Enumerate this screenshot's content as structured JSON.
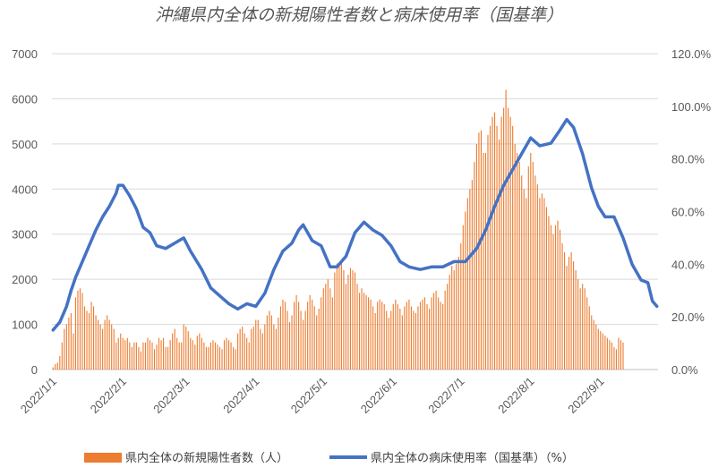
{
  "chart_data": {
    "type": "bar+line",
    "title": "沖縄県内全体の新規陽性者数と病床使用率（国基準）",
    "xlabel": "",
    "ylabel": "",
    "x_range": [
      "2022-01-01",
      "2022-09-26"
    ],
    "x_ticks": [
      "2022/1/1",
      "2022/2/1",
      "2022/3/1",
      "2022/4/1",
      "2022/5/1",
      "2022/6/1",
      "2022/7/1",
      "2022/8/1",
      "2022/9/1"
    ],
    "y_left": {
      "range": [
        0,
        7000
      ],
      "ticks": [
        "0",
        "1000",
        "2000",
        "3000",
        "4000",
        "5000",
        "6000",
        "7000"
      ]
    },
    "y_right": {
      "range": [
        0,
        1.2
      ],
      "ticks": [
        "0.0%",
        "20.0%",
        "40.0%",
        "60.0%",
        "80.0%",
        "100.0%",
        "120.0%"
      ]
    },
    "grid": true,
    "legend_position": "bottom",
    "series": [
      {
        "name": "県内全体の新規陽性者数（人）",
        "type": "bar",
        "axis": "left",
        "color": "#ED7D31",
        "x_start": "2022-01-01",
        "interval_days": 1,
        "values": [
          50,
          120,
          150,
          300,
          600,
          900,
          1000,
          1150,
          1250,
          800,
          1600,
          1750,
          1800,
          1700,
          1400,
          1300,
          1250,
          1500,
          1400,
          1200,
          1100,
          1000,
          900,
          1100,
          1200,
          1100,
          1000,
          900,
          600,
          700,
          800,
          700,
          650,
          700,
          600,
          500,
          600,
          600,
          500,
          400,
          600,
          600,
          700,
          650,
          600,
          450,
          550,
          700,
          650,
          700,
          500,
          500,
          650,
          800,
          900,
          700,
          600,
          600,
          1000,
          950,
          850,
          700,
          650,
          550,
          750,
          800,
          700,
          600,
          500,
          500,
          600,
          650,
          600,
          550,
          500,
          450,
          650,
          700,
          650,
          600,
          500,
          450,
          800,
          900,
          950,
          800,
          700,
          600,
          900,
          950,
          1100,
          1100,
          900,
          800,
          1000,
          1200,
          1300,
          1200,
          1000,
          900,
          1150,
          1400,
          1550,
          1500,
          1300,
          1050,
          1200,
          1500,
          1650,
          1500,
          1300,
          1100,
          1300,
          1500,
          1650,
          1550,
          1400,
          1200,
          1350,
          1600,
          1800,
          1900,
          2000,
          1800,
          1600,
          2150,
          2350,
          2300,
          2400,
          2200,
          1900,
          2100,
          2250,
          2200,
          2150,
          1900,
          1700,
          1800,
          1700,
          1650,
          1600,
          1550,
          1400,
          1250,
          1500,
          1550,
          1500,
          1450,
          1300,
          1150,
          1300,
          1450,
          1550,
          1450,
          1350,
          1200,
          1400,
          1500,
          1550,
          1400,
          1300,
          1250,
          1400,
          1500,
          1550,
          1600,
          1450,
          1350,
          1600,
          1700,
          1750,
          1600,
          1500,
          1450,
          1750,
          1900,
          2100,
          2300,
          2200,
          2350,
          2500,
          2800,
          3200,
          3500,
          3800,
          4000,
          4200,
          4600,
          5000,
          5250,
          5300,
          4800,
          4800,
          5200,
          5400,
          5600,
          5700,
          5400,
          5100,
          5600,
          5800,
          6200,
          5800,
          5600,
          5400,
          5000,
          4800,
          4600,
          4300,
          4000,
          3800,
          4500,
          4800,
          4600,
          4300,
          4100,
          3800,
          3900,
          3800,
          3600,
          3400,
          3200,
          3000,
          3200,
          3300,
          3100,
          2800,
          2600,
          2300,
          2500,
          2600,
          2400,
          2200,
          2000,
          1800,
          1900,
          1800,
          1600,
          1400,
          1200,
          1100,
          1000,
          900,
          850,
          800,
          750,
          700,
          650,
          600,
          500,
          450,
          700,
          650,
          600
        ]
      },
      {
        "name": "県内全体の病床使用率（国基準）（%）",
        "type": "line",
        "axis": "right",
        "color": "#4472C4",
        "points": [
          [
            "2022-01-01",
            0.15
          ],
          [
            "2022-01-04",
            0.18
          ],
          [
            "2022-01-07",
            0.24
          ],
          [
            "2022-01-09",
            0.3
          ],
          [
            "2022-01-11",
            0.35
          ],
          [
            "2022-01-14",
            0.41
          ],
          [
            "2022-01-17",
            0.47
          ],
          [
            "2022-01-20",
            0.53
          ],
          [
            "2022-01-23",
            0.58
          ],
          [
            "2022-01-26",
            0.62
          ],
          [
            "2022-01-29",
            0.67
          ],
          [
            "2022-01-30",
            0.7
          ],
          [
            "2022-02-01",
            0.7
          ],
          [
            "2022-02-04",
            0.66
          ],
          [
            "2022-02-07",
            0.61
          ],
          [
            "2022-02-10",
            0.54
          ],
          [
            "2022-02-13",
            0.52
          ],
          [
            "2022-02-16",
            0.47
          ],
          [
            "2022-02-20",
            0.46
          ],
          [
            "2022-02-24",
            0.48
          ],
          [
            "2022-02-28",
            0.5
          ],
          [
            "2022-03-03",
            0.45
          ],
          [
            "2022-03-08",
            0.38
          ],
          [
            "2022-03-12",
            0.31
          ],
          [
            "2022-03-16",
            0.28
          ],
          [
            "2022-03-20",
            0.25
          ],
          [
            "2022-03-24",
            0.23
          ],
          [
            "2022-03-28",
            0.25
          ],
          [
            "2022-04-01",
            0.24
          ],
          [
            "2022-04-05",
            0.29
          ],
          [
            "2022-04-09",
            0.38
          ],
          [
            "2022-04-13",
            0.45
          ],
          [
            "2022-04-17",
            0.48
          ],
          [
            "2022-04-20",
            0.53
          ],
          [
            "2022-04-22",
            0.55
          ],
          [
            "2022-04-26",
            0.49
          ],
          [
            "2022-04-30",
            0.47
          ],
          [
            "2022-05-04",
            0.39
          ],
          [
            "2022-05-07",
            0.39
          ],
          [
            "2022-05-11",
            0.43
          ],
          [
            "2022-05-15",
            0.52
          ],
          [
            "2022-05-19",
            0.56
          ],
          [
            "2022-05-23",
            0.53
          ],
          [
            "2022-05-27",
            0.51
          ],
          [
            "2022-05-31",
            0.47
          ],
          [
            "2022-06-04",
            0.41
          ],
          [
            "2022-06-08",
            0.39
          ],
          [
            "2022-06-13",
            0.38
          ],
          [
            "2022-06-18",
            0.39
          ],
          [
            "2022-06-23",
            0.39
          ],
          [
            "2022-06-28",
            0.41
          ],
          [
            "2022-07-03",
            0.41
          ],
          [
            "2022-07-08",
            0.46
          ],
          [
            "2022-07-12",
            0.53
          ],
          [
            "2022-07-16",
            0.62
          ],
          [
            "2022-07-20",
            0.7
          ],
          [
            "2022-07-24",
            0.76
          ],
          [
            "2022-07-28",
            0.82
          ],
          [
            "2022-08-01",
            0.88
          ],
          [
            "2022-08-05",
            0.85
          ],
          [
            "2022-08-10",
            0.86
          ],
          [
            "2022-08-14",
            0.91
          ],
          [
            "2022-08-17",
            0.95
          ],
          [
            "2022-08-20",
            0.92
          ],
          [
            "2022-08-24",
            0.82
          ],
          [
            "2022-08-28",
            0.69
          ],
          [
            "2022-08-31",
            0.62
          ],
          [
            "2022-09-03",
            0.58
          ],
          [
            "2022-09-07",
            0.58
          ],
          [
            "2022-09-11",
            0.5
          ],
          [
            "2022-09-15",
            0.4
          ],
          [
            "2022-09-19",
            0.34
          ],
          [
            "2022-09-22",
            0.33
          ],
          [
            "2022-09-24",
            0.26
          ],
          [
            "2022-09-26",
            0.24
          ]
        ]
      }
    ]
  }
}
